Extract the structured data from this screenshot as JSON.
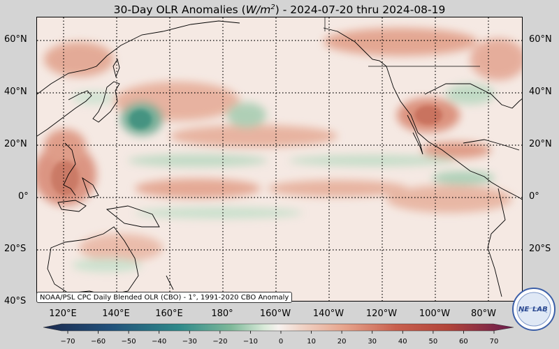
{
  "title": {
    "prefix": "30-Day OLR Anomalies (",
    "unit_base": "W/m",
    "unit_exp": "2",
    "suffix": ") - 2024-07-20 thru 2024-08-19"
  },
  "map": {
    "projection": "equirectangular, Pacific centered",
    "lon_range": "100°E to 70°W",
    "lat_range": "40°S to 68°N",
    "gridlines": "dotted",
    "features": [
      "coastlines",
      "country borders"
    ]
  },
  "lat_labels": [
    "60°N",
    "40°N",
    "20°N",
    "0°",
    "20°S",
    "40°S"
  ],
  "lon_labels": [
    "120°E",
    "140°E",
    "160°E",
    "180°",
    "160°W",
    "140°W",
    "120°W",
    "100°W",
    "80°W"
  ],
  "credit": "NOAA/PSL CPC Daily Blended OLR (CBO) - 1°, 1991-2020 CBO Anomaly",
  "colorbar": {
    "ticks": [
      "−70",
      "−60",
      "−50",
      "−40",
      "−30",
      "−20",
      "−10",
      "0",
      "10",
      "20",
      "30",
      "40",
      "50",
      "60",
      "70"
    ],
    "colors": {
      "neg_extreme": "#1c2a4f",
      "neg_teal": "#2f8a8a",
      "neg_green": "#7fb99a",
      "neutral": "#f7f2ef",
      "pos_salmon": "#e6a48c",
      "pos_red": "#b2453a",
      "pos_purple": "#6a1b4d"
    }
  },
  "logo": {
    "text_left": "NE",
    "text_right": "LAB",
    "ring_color": "#3c5fa8"
  }
}
